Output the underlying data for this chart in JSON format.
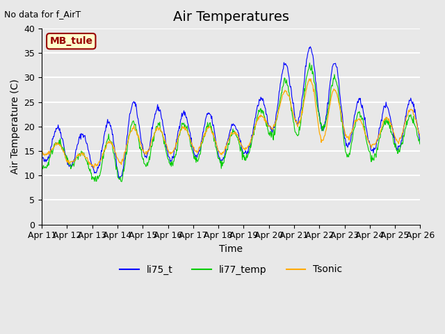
{
  "title": "Air Temperatures",
  "xlabel": "Time",
  "ylabel": "Air Temperature (C)",
  "top_left_text": "No data for f_AirT",
  "legend_label_text": "MB_tule",
  "ylim": [
    0,
    40
  ],
  "yticks": [
    0,
    5,
    10,
    15,
    20,
    25,
    30,
    35,
    40
  ],
  "xtick_labels": [
    "Apr 11",
    "Apr 12",
    "Apr 13",
    "Apr 14",
    "Apr 15",
    "Apr 16",
    "Apr 17",
    "Apr 18",
    "Apr 19",
    "Apr 20",
    "Apr 21",
    "Apr 22",
    "Apr 23",
    "Apr 24",
    "Apr 25",
    "Apr 26"
  ],
  "series_colors": {
    "li75_t": "#0000ff",
    "li77_temp": "#00cc00",
    "Tsonic": "#ffaa00"
  },
  "background_color": "#e8e8e8",
  "plot_bg_color": "#e8e8e8",
  "grid_color": "#ffffff",
  "mb_tule_box_color": "#ffffcc",
  "mb_tule_text_color": "#990000",
  "title_fontsize": 14,
  "axis_label_fontsize": 10,
  "tick_fontsize": 9,
  "legend_fontsize": 10,
  "num_points_per_day": 48,
  "li75_t_peaks": [
    19.5,
    20.0,
    17.5,
    23.0,
    26.0,
    22.5,
    23.0,
    22.5,
    19.0,
    29.0,
    35.0,
    37.0,
    30.5,
    22.0,
    25.5,
    28.0
  ],
  "li75_t_valleys": [
    13.0,
    12.0,
    11.0,
    9.0,
    14.0,
    13.0,
    14.0,
    13.0,
    14.0,
    19.0,
    21.0,
    20.0,
    16.0,
    15.0,
    15.5,
    16.0
  ],
  "li77_temp_peaks": [
    17.0,
    17.0,
    13.0,
    20.0,
    21.0,
    20.0,
    21.0,
    20.0,
    18.0,
    26.0,
    31.5,
    32.5,
    28.0,
    19.5,
    22.0,
    16.0
  ],
  "li77_temp_valleys": [
    11.5,
    12.5,
    9.0,
    8.5,
    12.0,
    12.0,
    13.0,
    12.5,
    13.0,
    18.0,
    18.0,
    20.5,
    14.0,
    13.5,
    15.0,
    15.5
  ],
  "Tsonic_peaks": [
    16.5,
    16.5,
    13.0,
    19.0,
    20.0,
    19.5,
    20.0,
    19.5,
    18.5,
    24.0,
    29.0,
    30.0,
    26.0,
    18.5,
    23.5,
    18.0
  ],
  "Tsonic_valleys": [
    14.5,
    12.5,
    12.0,
    12.5,
    14.5,
    14.5,
    15.0,
    14.5,
    15.0,
    19.5,
    21.0,
    17.0,
    18.0,
    16.0,
    17.0,
    17.0
  ]
}
